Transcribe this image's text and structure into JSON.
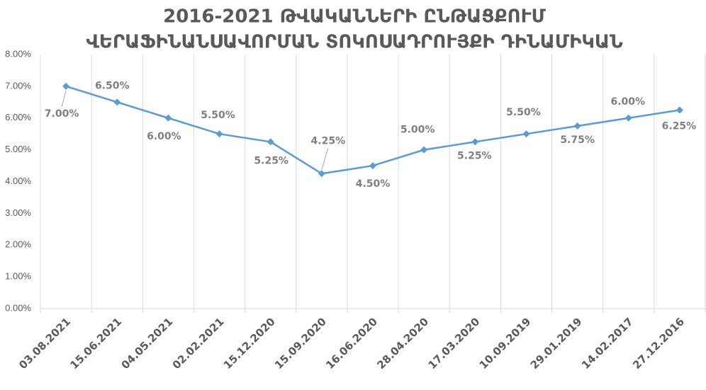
{
  "chart_data": {
    "type": "line",
    "title": [
      "2016-2021 ԹՎԱԿԱՆՆԵՐԻ ԸՆԹԱՑՔՈՒՄ",
      "ՎԵՐԱՖԻՆԱՆՍԱՎՈՐՄԱՆ ՏՈԿՈՍԱԴՐՈՒՅՔԻ ԴԻՆԱՄԻԿԱՆ"
    ],
    "categories": [
      "03.08.2021",
      "15.06.2021",
      "04.05.2021",
      "02.02.2021",
      "15.12.2020",
      "15.09.2020",
      "16.06.2020",
      "28.04.2020",
      "17.03.2020",
      "10.09.2019",
      "29.01.2019",
      "14.02.2017",
      "27.12.2016"
    ],
    "values": [
      7,
      6.5,
      6,
      5.5,
      5.25,
      4.25,
      4.5,
      5,
      5.25,
      5.5,
      5.75,
      6,
      6.25
    ],
    "value_labels": [
      "7.00%",
      "6.50%",
      "6.00%",
      "5.50%",
      "5.25%",
      "4.25%",
      "4.50%",
      "5.00%",
      "5.25%",
      "5.50%",
      "5.75%",
      "6.00%",
      "6.25%"
    ],
    "color": "#5b9bd5",
    "ylim": [
      0,
      8
    ],
    "yticks": [
      {
        "value": 0,
        "label": "0.00%"
      },
      {
        "value": 1,
        "label": "1.00%"
      },
      {
        "value": 2,
        "label": "2.00%"
      },
      {
        "value": 3,
        "label": "3.00%"
      },
      {
        "value": 4,
        "label": "4.00%"
      },
      {
        "value": 5,
        "label": "5.00%"
      },
      {
        "value": 6,
        "label": "6.00%"
      },
      {
        "value": 7,
        "label": "7.00%"
      },
      {
        "value": 8,
        "label": "8.00%"
      }
    ]
  }
}
